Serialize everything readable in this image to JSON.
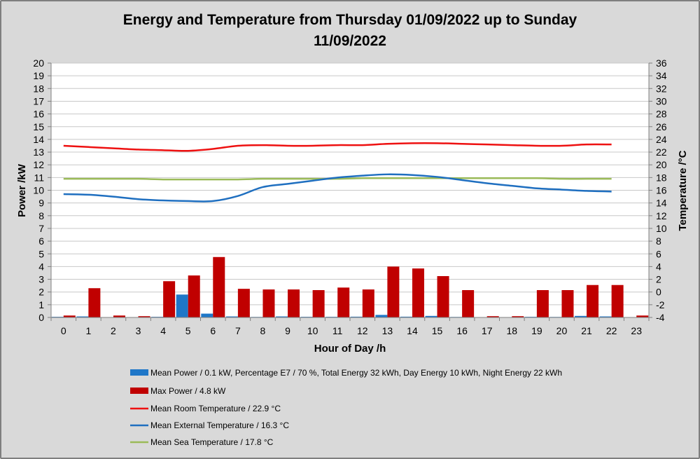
{
  "chart_data": {
    "type": "bar+line",
    "title_line1": "Energy and Temperature from Thursday 01/09/2022 up to Sunday",
    "title_line2": "11/09/2022",
    "xlabel": "Hour of Day /h",
    "ylabel_left": "Power /kW",
    "ylabel_right": "Temperature /°C",
    "ylim_left": [
      0,
      20
    ],
    "ylim_right": [
      -4,
      36
    ],
    "left_ticks": [
      0,
      1,
      2,
      3,
      4,
      5,
      6,
      7,
      8,
      9,
      10,
      11,
      12,
      13,
      14,
      15,
      16,
      17,
      18,
      19,
      20
    ],
    "right_ticks": [
      -4,
      -2,
      0,
      2,
      4,
      6,
      8,
      10,
      12,
      14,
      16,
      18,
      20,
      22,
      24,
      26,
      28,
      30,
      32,
      34,
      36
    ],
    "grid": true,
    "legend_position": "bottom",
    "categories": [
      "0",
      "1",
      "2",
      "3",
      "4",
      "5",
      "6",
      "7",
      "8",
      "9",
      "10",
      "11",
      "12",
      "13",
      "14",
      "15",
      "16",
      "17",
      "18",
      "19",
      "20",
      "21",
      "22",
      "23"
    ],
    "bar_series": [
      {
        "name": "Mean Power / 0.1 kW, Percentage E7 / 70 %, Total Energy 32 kWh, Day Energy 10 kWh, Night Energy 22 kWh",
        "color": "#1f77c8",
        "values": [
          0.05,
          0.08,
          0.02,
          0.02,
          0.05,
          1.8,
          0.3,
          0.08,
          0.04,
          0.08,
          0.05,
          0.05,
          0.06,
          0.2,
          0.06,
          0.12,
          0.04,
          0.02,
          0.02,
          0.05,
          0.04,
          0.12,
          0.08,
          0.02
        ]
      },
      {
        "name": "Max Power / 4.8 kW",
        "color": "#c00000",
        "values": [
          0.15,
          2.3,
          0.15,
          0.1,
          2.85,
          3.3,
          4.75,
          2.25,
          2.2,
          2.2,
          2.15,
          2.35,
          2.2,
          4.0,
          3.85,
          3.25,
          2.15,
          0.1,
          0.1,
          2.15,
          2.15,
          2.55,
          2.55,
          0.15
        ]
      }
    ],
    "line_series": [
      {
        "name": "Mean Room Temperature / 22.9 °C",
        "color": "#ee1111",
        "x": [
          0,
          1,
          2,
          3,
          4,
          5,
          6,
          7,
          8,
          9,
          10,
          11,
          12,
          13,
          14,
          15,
          16,
          17,
          18,
          19,
          20,
          21,
          22
        ],
        "values": [
          23.0,
          22.8,
          22.6,
          22.4,
          22.3,
          22.2,
          22.5,
          23.0,
          23.1,
          23.0,
          23.0,
          23.1,
          23.1,
          23.3,
          23.4,
          23.4,
          23.3,
          23.2,
          23.1,
          23.0,
          23.0,
          23.2,
          23.2
        ]
      },
      {
        "name": "Mean External Temperature / 16.3 °C",
        "color": "#1f6fc0",
        "x": [
          0,
          1,
          2,
          3,
          4,
          5,
          6,
          7,
          8,
          9,
          10,
          11,
          12,
          13,
          14,
          15,
          16,
          17,
          18,
          19,
          20,
          21,
          22
        ],
        "values": [
          15.4,
          15.3,
          15.0,
          14.6,
          14.4,
          14.3,
          14.3,
          15.1,
          16.5,
          17.0,
          17.5,
          18.0,
          18.3,
          18.5,
          18.4,
          18.1,
          17.6,
          17.1,
          16.7,
          16.3,
          16.1,
          15.9,
          15.8
        ]
      },
      {
        "name": "Mean Sea Temperature / 17.8 °C",
        "color": "#9bbb59",
        "x": [
          0,
          1,
          2,
          3,
          4,
          5,
          6,
          7,
          8,
          9,
          10,
          11,
          12,
          13,
          14,
          15,
          16,
          17,
          18,
          19,
          20,
          21,
          22
        ],
        "values": [
          17.8,
          17.8,
          17.8,
          17.8,
          17.7,
          17.7,
          17.7,
          17.7,
          17.8,
          17.8,
          17.8,
          17.8,
          17.9,
          17.9,
          17.9,
          17.9,
          17.9,
          17.9,
          17.9,
          17.9,
          17.8,
          17.8,
          17.8
        ]
      }
    ]
  }
}
